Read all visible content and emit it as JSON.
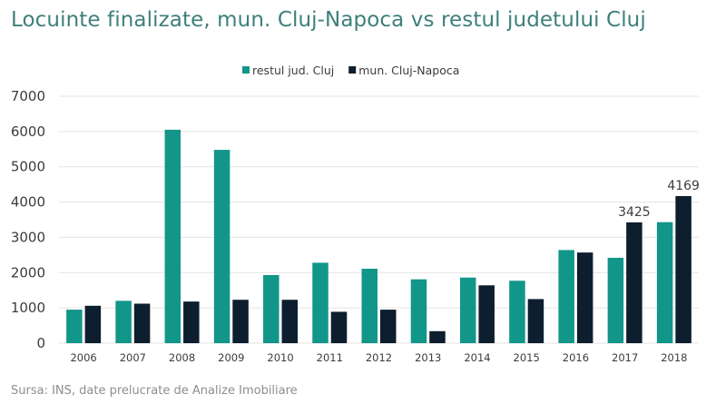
{
  "title": "Locuinte finalizate, mun. Cluj-Napoca vs restul judetului Cluj",
  "source": "Sursa: INS, date prelucrate de Analize Imobiliare",
  "colors": {
    "series_1": "#12968a",
    "series_2": "#0d1e2e",
    "title": "#3e7f7a",
    "grid": "#e3e3e3"
  },
  "chart_data": {
    "type": "bar",
    "categories": [
      "2006",
      "2007",
      "2008",
      "2009",
      "2010",
      "2011",
      "2012",
      "2013",
      "2014",
      "2015",
      "2016",
      "2017",
      "2018"
    ],
    "series": [
      {
        "name": "restul jud. Cluj",
        "values": [
          950,
          1200,
          6050,
          5480,
          1930,
          2280,
          2110,
          1810,
          1860,
          1770,
          2640,
          2420,
          3430
        ]
      },
      {
        "name": "mun. Cluj-Napoca",
        "values": [
          1060,
          1120,
          1180,
          1230,
          1230,
          890,
          950,
          340,
          1640,
          1250,
          2570,
          3425,
          4169
        ]
      }
    ],
    "data_labels": [
      {
        "series": 1,
        "category": "2017",
        "text": "3425"
      },
      {
        "series": 1,
        "category": "2018",
        "text": "4169"
      }
    ],
    "ylim": [
      0,
      7000
    ],
    "yticks": [
      0,
      1000,
      2000,
      3000,
      4000,
      5000,
      6000,
      7000
    ],
    "grid": true,
    "legend_position": "top-center",
    "xlabel": "",
    "ylabel": ""
  }
}
